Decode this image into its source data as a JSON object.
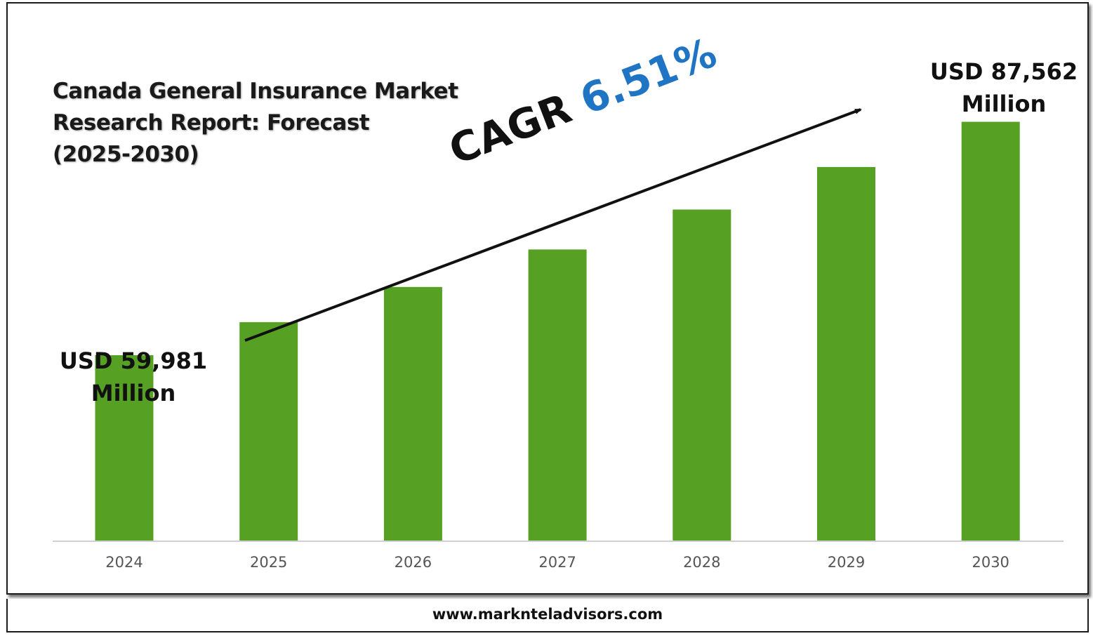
{
  "chart_data": {
    "type": "bar",
    "title": "Canada General Insurance Market Research Report: Forecast (2025-2030)",
    "title_lines": [
      "Canada General Insurance Market",
      "Research Report: Forecast",
      "(2025-2030)"
    ],
    "categories": [
      "2024",
      "2025",
      "2026",
      "2027",
      "2028",
      "2029",
      "2030"
    ],
    "values": [
      59981,
      63886,
      68045,
      72475,
      77193,
      82218,
      87562
    ],
    "unit": "USD Million",
    "bar_color": "#56a124",
    "ylim": [
      38000,
      92000
    ],
    "grid": false,
    "annotations": {
      "start": {
        "lines": [
          "USD 59,981",
          "Million"
        ]
      },
      "end": {
        "lines": [
          "USD 87,562",
          "Million"
        ]
      },
      "cagr": {
        "label": "CAGR",
        "value": "6.51%",
        "value_color": "#1f74c4"
      }
    }
  },
  "footer": {
    "website": "www.marknteladvisors.com"
  }
}
